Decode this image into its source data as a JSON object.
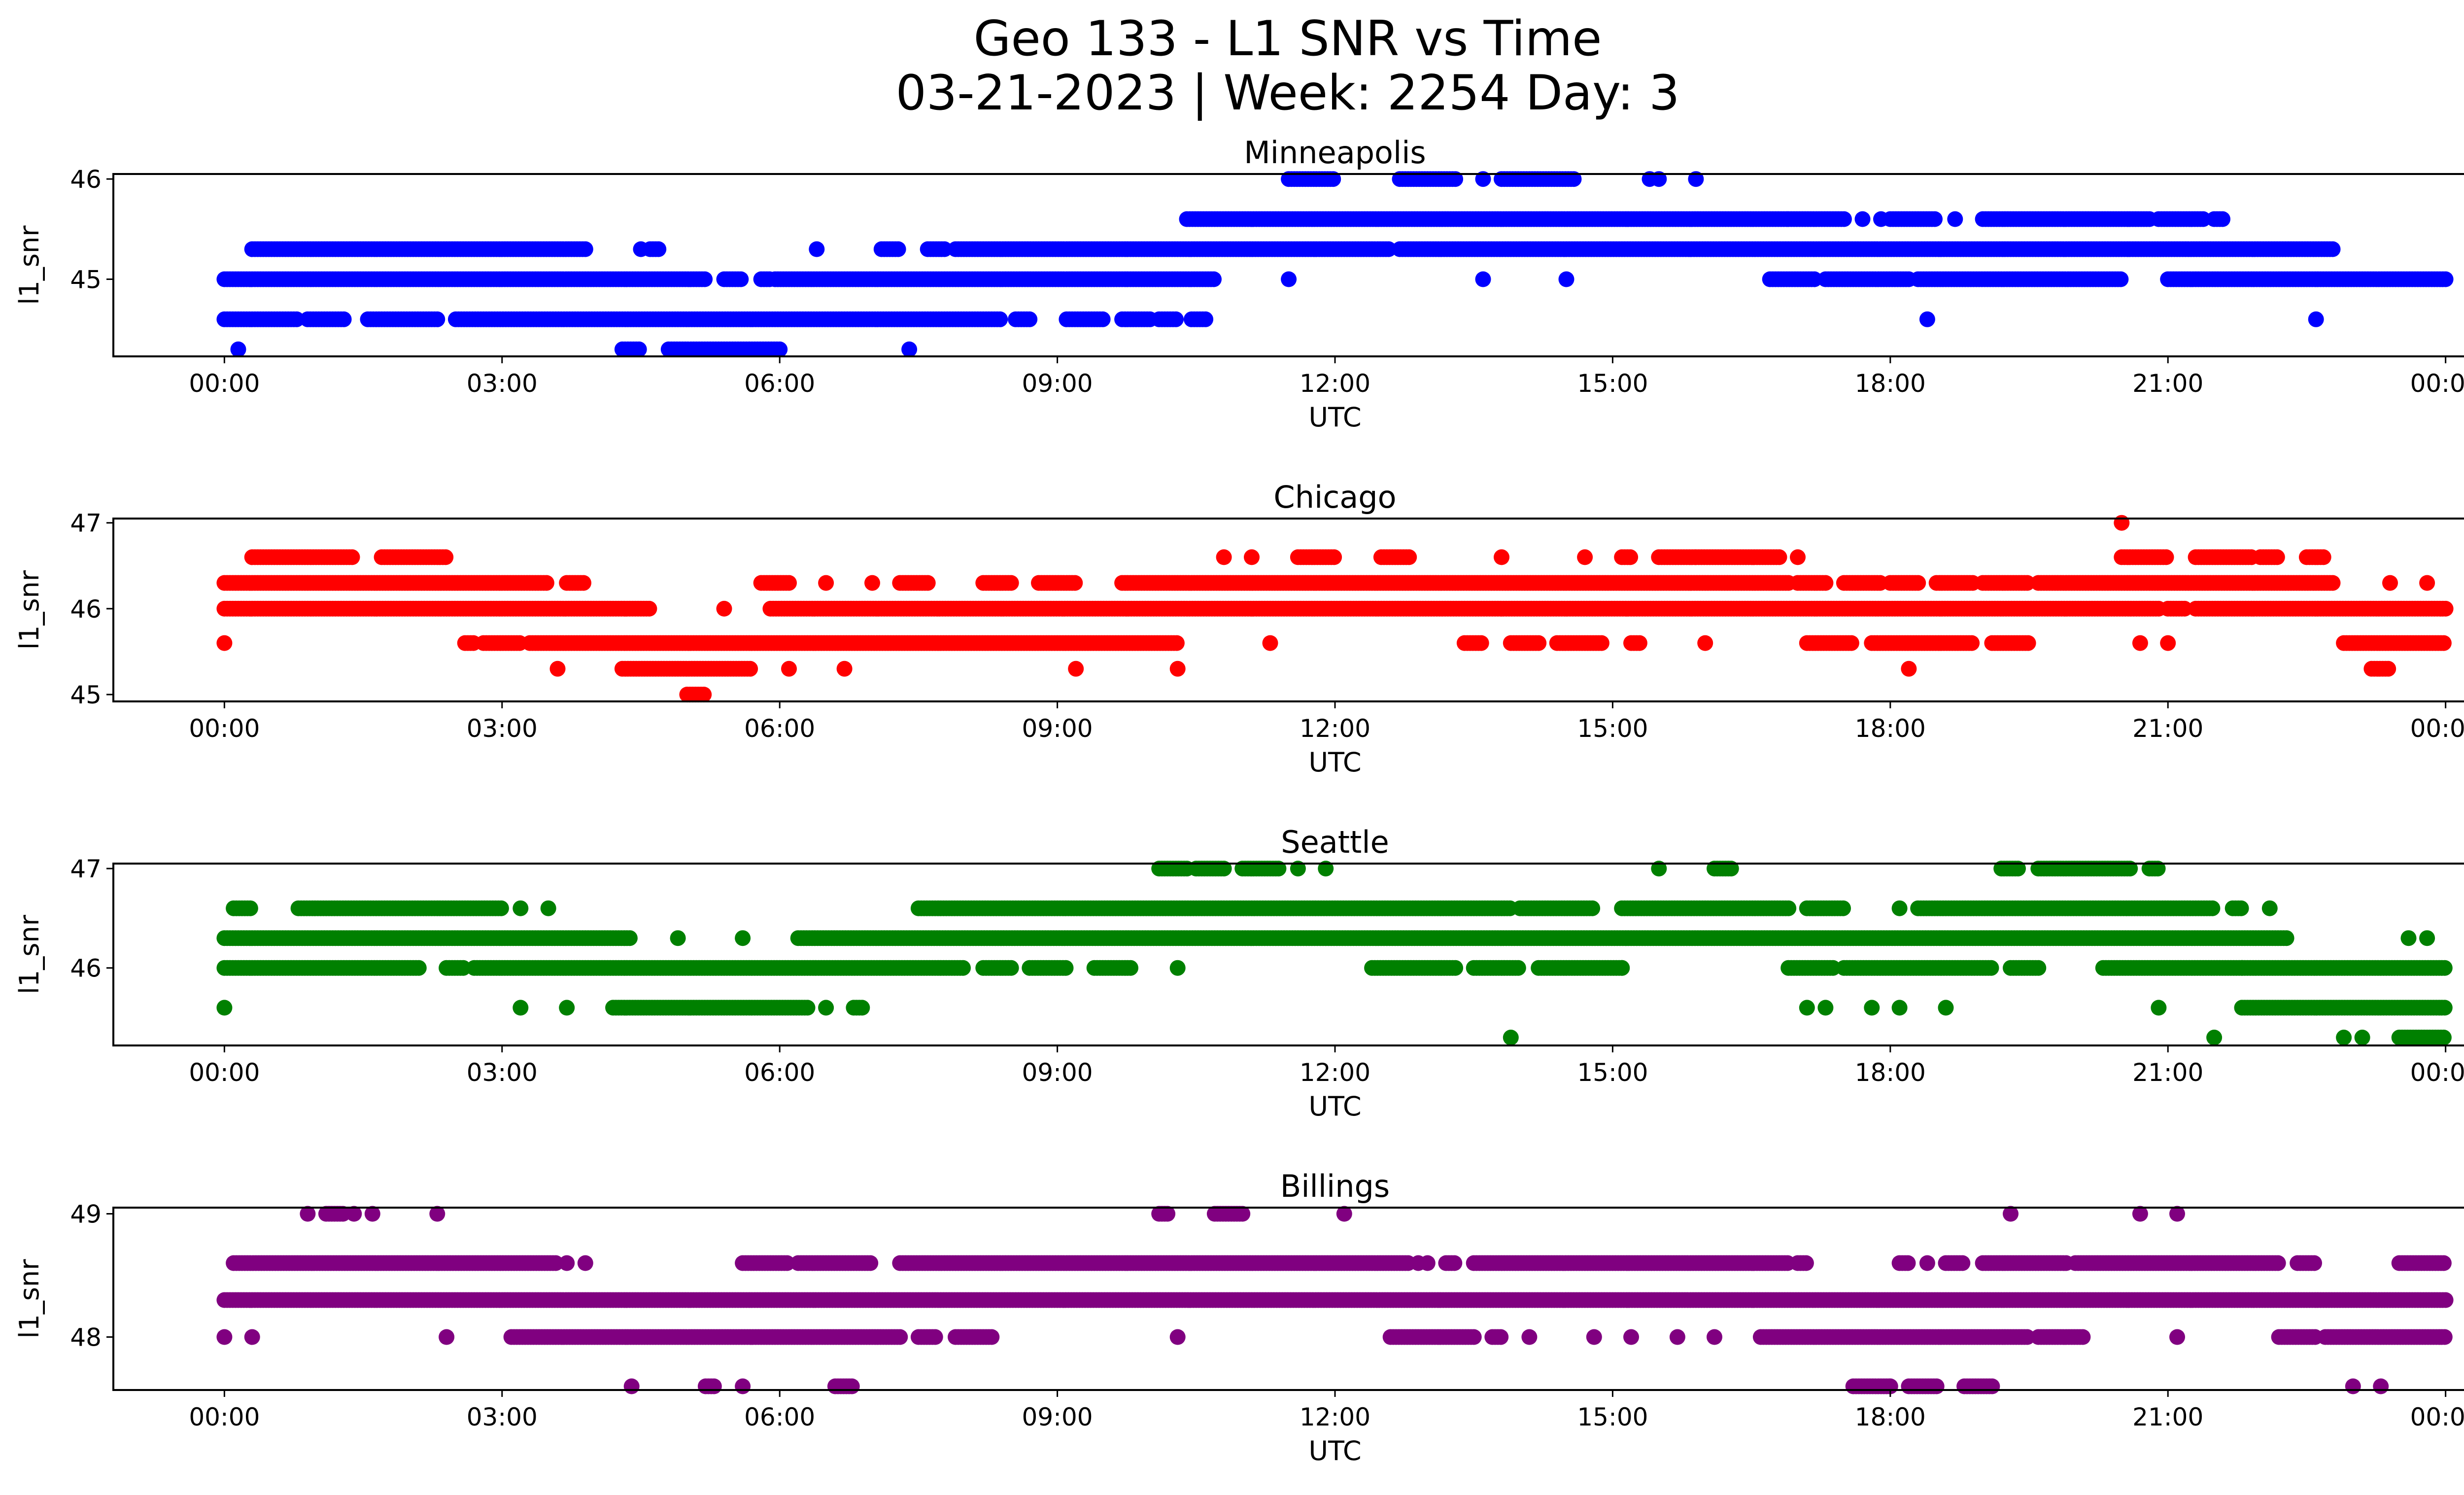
{
  "figure": {
    "title_line1": "Geo 133 - L1 SNR vs Time",
    "title_line2": "03-21-2023 | Week: 2254 Day: 3"
  },
  "chart_data": [
    {
      "type": "scatter",
      "title": "Minneapolis",
      "xlabel": "UTC",
      "ylabel": "l1_snr",
      "color": "#0000ff",
      "xlim_hours": [
        -1.2,
        25.2
      ],
      "ylim": [
        44.23,
        46.05
      ],
      "yticks": [
        45,
        46
      ],
      "xticks": [
        "00:00",
        "03:00",
        "06:00",
        "09:00",
        "12:00",
        "15:00",
        "18:00",
        "21:00",
        "00:00"
      ],
      "xtick_hours": [
        0,
        3,
        6,
        9,
        12,
        15,
        18,
        21,
        24
      ],
      "series": [
        {
          "y": 44.6,
          "segments": [
            [
              0.0,
              0.8
            ],
            [
              0.9,
              1.3
            ],
            [
              1.55,
              2.3
            ],
            [
              2.5,
              8.4
            ],
            [
              8.55,
              8.7
            ],
            [
              9.1,
              9.5
            ],
            [
              9.7,
              10.0
            ],
            [
              10.1,
              10.3
            ],
            [
              10.45,
              10.6
            ]
          ],
          "points": [
            18.4,
            22.6
          ]
        },
        {
          "y": 45.0,
          "segments": [
            [
              0.0,
              5.2
            ],
            [
              5.4,
              5.6
            ],
            [
              5.8,
              5.9
            ],
            [
              5.95,
              10.7
            ],
            [
              16.7,
              17.2
            ],
            [
              17.3,
              18.2
            ],
            [
              18.3,
              20.5
            ],
            [
              21.0,
              24.0
            ]
          ],
          "points": [
            11.5,
            13.6,
            14.5
          ]
        },
        {
          "y": 45.3,
          "segments": [
            [
              0.3,
              3.9
            ],
            [
              4.6,
              4.7
            ],
            [
              7.1,
              7.3
            ],
            [
              7.6,
              7.8
            ],
            [
              7.9,
              12.6
            ],
            [
              12.7,
              22.8
            ]
          ],
          "points": [
            4.5,
            6.4
          ]
        },
        {
          "y": 45.6,
          "segments": [
            [
              10.4,
              16.9
            ],
            [
              16.9,
              17.5
            ],
            [
              18.0,
              18.5
            ],
            [
              19.0,
              20.8
            ],
            [
              20.9,
              21.4
            ],
            [
              21.5,
              21.6
            ]
          ],
          "points": [
            17.7,
            17.9,
            18.7
          ]
        },
        {
          "y": 46.0,
          "segments": [
            [
              11.5,
              12.0
            ],
            [
              12.7,
              13.3
            ],
            [
              13.8,
              14.6
            ]
          ],
          "points": [
            13.6,
            15.4,
            15.5,
            15.9
          ]
        },
        {
          "y": 44.3,
          "segments": [
            [
              4.3,
              4.5
            ],
            [
              4.8,
              6.0
            ]
          ],
          "points": [
            0.15,
            7.4
          ]
        }
      ]
    },
    {
      "type": "scatter",
      "title": "Chicago",
      "xlabel": "UTC",
      "ylabel": "l1_snr",
      "color": "#ff0000",
      "xlim_hours": [
        -1.2,
        25.2
      ],
      "ylim": [
        44.92,
        47.05
      ],
      "yticks": [
        45,
        46,
        47
      ],
      "xticks": [
        "00:00",
        "03:00",
        "06:00",
        "09:00",
        "12:00",
        "15:00",
        "18:00",
        "21:00",
        "00:00"
      ],
      "xtick_hours": [
        0,
        3,
        6,
        9,
        12,
        15,
        18,
        21,
        24
      ],
      "series": [
        {
          "y": 46.0,
          "segments": [
            [
              0.0,
              4.6
            ],
            [
              5.9,
              20.9
            ],
            [
              21.0,
              21.2
            ],
            [
              21.3,
              24.0
            ]
          ],
          "points": [
            5.4
          ]
        },
        {
          "y": 46.3,
          "segments": [
            [
              0.0,
              3.5
            ],
            [
              3.7,
              3.9
            ],
            [
              5.8,
              6.1
            ],
            [
              7.3,
              7.6
            ],
            [
              8.2,
              8.5
            ],
            [
              8.8,
              9.2
            ],
            [
              9.7,
              16.9
            ],
            [
              17.0,
              17.3
            ],
            [
              17.5,
              17.9
            ],
            [
              18.0,
              18.3
            ],
            [
              18.5,
              18.9
            ],
            [
              19.0,
              19.5
            ],
            [
              19.6,
              22.8
            ]
          ],
          "points": [
            6.5,
            7.0,
            23.4,
            23.8
          ]
        },
        {
          "y": 45.6,
          "segments": [
            [
              2.6,
              2.7
            ],
            [
              2.8,
              3.2
            ],
            [
              3.3,
              10.3
            ],
            [
              13.4,
              13.6
            ],
            [
              13.9,
              14.2
            ],
            [
              14.4,
              14.9
            ],
            [
              15.2,
              15.3
            ],
            [
              17.1,
              17.6
            ],
            [
              17.8,
              18.9
            ],
            [
              19.1,
              19.5
            ],
            [
              22.9,
              24.0
            ]
          ],
          "points": [
            0.0,
            11.3,
            16.0,
            20.7,
            21.0
          ]
        },
        {
          "y": 46.6,
          "segments": [
            [
              0.3,
              1.4
            ],
            [
              1.7,
              2.4
            ],
            [
              11.6,
              12.0
            ],
            [
              12.5,
              12.8
            ],
            [
              15.1,
              15.2
            ],
            [
              15.5,
              15.9
            ],
            [
              15.9,
              16.8
            ],
            [
              20.5,
              21.0
            ],
            [
              21.3,
              21.9
            ],
            [
              22.0,
              22.2
            ],
            [
              22.5,
              22.7
            ]
          ],
          "points": [
            10.8,
            11.1,
            13.8,
            14.7,
            17.0
          ]
        },
        {
          "y": 45.3,
          "segments": [
            [
              4.3,
              5.7
            ],
            [
              23.2,
              23.4
            ]
          ],
          "points": [
            3.6,
            6.1,
            6.7,
            9.2,
            10.3,
            18.2
          ]
        },
        {
          "y": 45.0,
          "segments": [
            [
              5.0,
              5.2
            ]
          ],
          "points": []
        },
        {
          "y": 47.0,
          "segments": [],
          "points": [
            20.5
          ]
        }
      ]
    },
    {
      "type": "scatter",
      "title": "Seattle",
      "xlabel": "UTC",
      "ylabel": "l1_snr",
      "color": "#008000",
      "xlim_hours": [
        -1.2,
        25.2
      ],
      "ylim": [
        45.22,
        47.05
      ],
      "yticks": [
        46,
        47
      ],
      "xticks": [
        "00:00",
        "03:00",
        "06:00",
        "09:00",
        "12:00",
        "15:00",
        "18:00",
        "21:00",
        "00:00"
      ],
      "xtick_hours": [
        0,
        3,
        6,
        9,
        12,
        15,
        18,
        21,
        24
      ],
      "series": [
        {
          "y": 46.3,
          "segments": [
            [
              0.0,
              4.4
            ],
            [
              6.2,
              22.3
            ]
          ],
          "points": [
            4.9,
            5.6,
            23.6,
            23.8
          ]
        },
        {
          "y": 46.0,
          "segments": [
            [
              0.0,
              2.1
            ],
            [
              2.4,
              2.6
            ],
            [
              2.7,
              8.0
            ],
            [
              8.2,
              8.5
            ],
            [
              8.7,
              9.1
            ],
            [
              9.4,
              9.8
            ],
            [
              12.4,
              13.3
            ],
            [
              13.5,
              14.0
            ],
            [
              14.2,
              15.1
            ],
            [
              16.9,
              17.4
            ],
            [
              17.5,
              19.1
            ],
            [
              19.3,
              19.6
            ],
            [
              20.3,
              21.8
            ],
            [
              21.8,
              24.0
            ]
          ],
          "points": [
            10.3,
            15.1
          ]
        },
        {
          "y": 46.6,
          "segments": [
            [
              0.1,
              0.3
            ],
            [
              0.8,
              3.0
            ],
            [
              7.5,
              13.9
            ],
            [
              14.0,
              14.8
            ],
            [
              15.1,
              16.9
            ],
            [
              17.1,
              17.5
            ],
            [
              18.3,
              21.5
            ],
            [
              21.7,
              21.8
            ]
          ],
          "points": [
            3.2,
            3.5,
            18.1,
            22.1
          ]
        },
        {
          "y": 45.6,
          "segments": [
            [
              4.2,
              6.3
            ],
            [
              6.8,
              6.9
            ],
            [
              21.8,
              24.0
            ]
          ],
          "points": [
            0.0,
            3.2,
            3.7,
            6.5,
            17.1,
            17.3,
            17.8,
            18.1,
            18.6,
            20.9
          ]
        },
        {
          "y": 47.0,
          "segments": [
            [
              10.1,
              10.4
            ],
            [
              10.5,
              10.8
            ],
            [
              11.0,
              11.4
            ],
            [
              16.1,
              16.3
            ],
            [
              19.2,
              19.4
            ],
            [
              19.6,
              20.6
            ],
            [
              20.8,
              20.9
            ]
          ],
          "points": [
            11.6,
            11.9,
            15.5
          ]
        },
        {
          "y": 45.3,
          "segments": [
            [
              23.5,
              24.0
            ]
          ],
          "points": [
            13.9,
            21.5,
            22.9,
            23.1
          ]
        }
      ]
    },
    {
      "type": "scatter",
      "title": "Billings",
      "xlabel": "UTC",
      "ylabel": "l1_snr",
      "color": "#800080",
      "xlim_hours": [
        -1.2,
        25.2
      ],
      "ylim": [
        47.57,
        49.05
      ],
      "yticks": [
        48,
        49
      ],
      "xticks": [
        "00:00",
        "03:00",
        "06:00",
        "09:00",
        "12:00",
        "15:00",
        "18:00",
        "21:00",
        "00:00"
      ],
      "xtick_hours": [
        0,
        3,
        6,
        9,
        12,
        15,
        18,
        21,
        24
      ],
      "series": [
        {
          "y": 48.3,
          "segments": [
            [
              0.0,
              24.0
            ]
          ],
          "points": []
        },
        {
          "y": 48.6,
          "segments": [
            [
              0.1,
              3.6
            ],
            [
              5.6,
              6.1
            ],
            [
              6.2,
              7.0
            ],
            [
              7.3,
              12.8
            ],
            [
              13.2,
              13.3
            ],
            [
              13.5,
              16.9
            ],
            [
              17.0,
              17.1
            ],
            [
              18.1,
              18.2
            ],
            [
              18.6,
              18.8
            ],
            [
              19.0,
              19.9
            ],
            [
              20.0,
              22.2
            ],
            [
              22.4,
              22.6
            ],
            [
              23.5,
              24.0
            ]
          ],
          "points": [
            3.7,
            3.9,
            12.9,
            13.0,
            18.4
          ]
        },
        {
          "y": 48.0,
          "segments": [
            [
              3.1,
              7.3
            ],
            [
              7.5,
              7.7
            ],
            [
              7.9,
              8.3
            ],
            [
              12.6,
              13.5
            ],
            [
              13.7,
              13.8
            ],
            [
              16.6,
              19.5
            ],
            [
              19.6,
              20.1
            ],
            [
              22.2,
              22.6
            ],
            [
              22.7,
              24.0
            ]
          ],
          "points": [
            0.0,
            0.3,
            2.4,
            10.3,
            14.1,
            14.8,
            15.2,
            15.7,
            16.1,
            21.1
          ]
        },
        {
          "y": 49.0,
          "segments": [
            [
              1.1,
              1.3
            ],
            [
              10.1,
              10.2
            ],
            [
              10.7,
              11.0
            ]
          ],
          "points": [
            0.9,
            1.4,
            1.6,
            2.3,
            12.1,
            19.3,
            20.7,
            21.1
          ]
        },
        {
          "y": 47.6,
          "segments": [
            [
              5.2,
              5.3
            ],
            [
              6.6,
              6.8
            ],
            [
              17.6,
              18.0
            ],
            [
              18.2,
              18.5
            ],
            [
              18.8,
              19.1
            ]
          ],
          "points": [
            4.4,
            5.6,
            18.0,
            23.0,
            23.3
          ]
        }
      ]
    }
  ]
}
